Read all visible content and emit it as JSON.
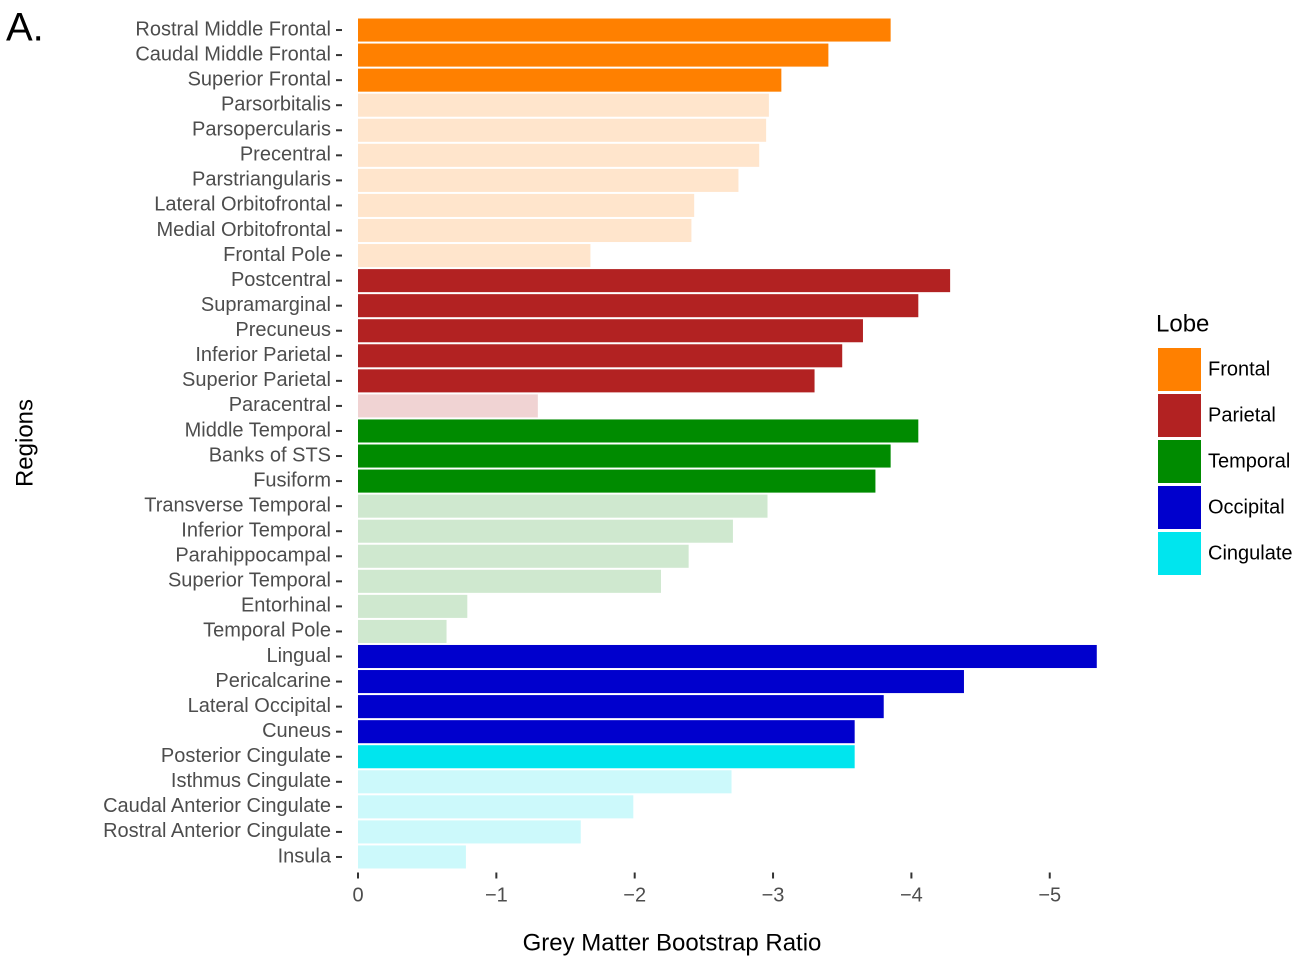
{
  "chart_data": {
    "type": "bar",
    "orientation": "horizontal",
    "panel_label": "A.",
    "x_label": "Grey Matter Bootstrap Ratio",
    "y_label": "Regions",
    "legend_title": "Lobe",
    "legend_position": "right",
    "categories": [
      "Rostral Middle Frontal",
      "Caudal Middle Frontal",
      "Superior Frontal",
      "Parsorbitalis",
      "Parsopercularis",
      "Precentral",
      "Parstriangularis",
      "Lateral Orbitofrontal",
      "Medial Orbitofrontal",
      "Frontal Pole",
      "Postcentral",
      "Supramarginal",
      "Precuneus",
      "Inferior Parietal",
      "Superior Parietal",
      "Paracentral",
      "Middle Temporal",
      "Banks of STS",
      "Fusiform",
      "Transverse Temporal",
      "Inferior Temporal",
      "Parahippocampal",
      "Superior Temporal",
      "Entorhinal",
      "Temporal Pole",
      "Lingual",
      "Pericalcarine",
      "Lateral Occipital",
      "Cuneus",
      "Posterior Cingulate",
      "Isthmus Cingulate",
      "Caudal Anterior Cingulate",
      "Rostral Anterior Cingulate",
      "Insula"
    ],
    "values": [
      -3.85,
      -3.4,
      -3.06,
      -2.97,
      -2.95,
      -2.9,
      -2.75,
      -2.43,
      -2.41,
      -1.68,
      -4.28,
      -4.05,
      -3.65,
      -3.5,
      -3.3,
      -1.3,
      -4.05,
      -3.85,
      -3.74,
      -2.96,
      -2.71,
      -2.39,
      -2.19,
      -0.79,
      -0.64,
      -5.34,
      -4.38,
      -3.8,
      -3.59,
      -3.59,
      -2.7,
      -1.99,
      -1.61,
      -0.78
    ],
    "colors": [
      "#ff8000",
      "#ff8000",
      "#ff8000",
      "#ffe5cc",
      "#ffe5cc",
      "#ffe5cc",
      "#ffe5cc",
      "#ffe5cc",
      "#ffe5cc",
      "#ffe5cc",
      "#b22222",
      "#b22222",
      "#b22222",
      "#b22222",
      "#b22222",
      "#f0d3d3",
      "#008b00",
      "#008b00",
      "#008b00",
      "#cfe8cf",
      "#cfe8cf",
      "#cfe8cf",
      "#cfe8cf",
      "#cfe8cf",
      "#cfe8cf",
      "#0000cd",
      "#0000cd",
      "#0000cd",
      "#0000cd",
      "#00e5ee",
      "#ccf9fb",
      "#ccf9fb",
      "#ccf9fb",
      "#ccf9fb"
    ],
    "legend": [
      {
        "name": "Frontal",
        "color": "#ff8000"
      },
      {
        "name": "Parietal",
        "color": "#b22222"
      },
      {
        "name": "Temporal",
        "color": "#008b00"
      },
      {
        "name": "Occipital",
        "color": "#0000cd"
      },
      {
        "name": "Cingulate",
        "color": "#00e5ee"
      }
    ],
    "xlim": [
      0,
      -5.45
    ],
    "xticks": [
      0,
      {
        "value": -1,
        "label": "−1"
      },
      {
        "value": -2,
        "label": "−2"
      },
      {
        "value": -3,
        "label": "−3"
      },
      {
        "value": -4,
        "label": "−4"
      },
      {
        "value": -5,
        "label": "−5"
      }
    ],
    "grid": false
  }
}
